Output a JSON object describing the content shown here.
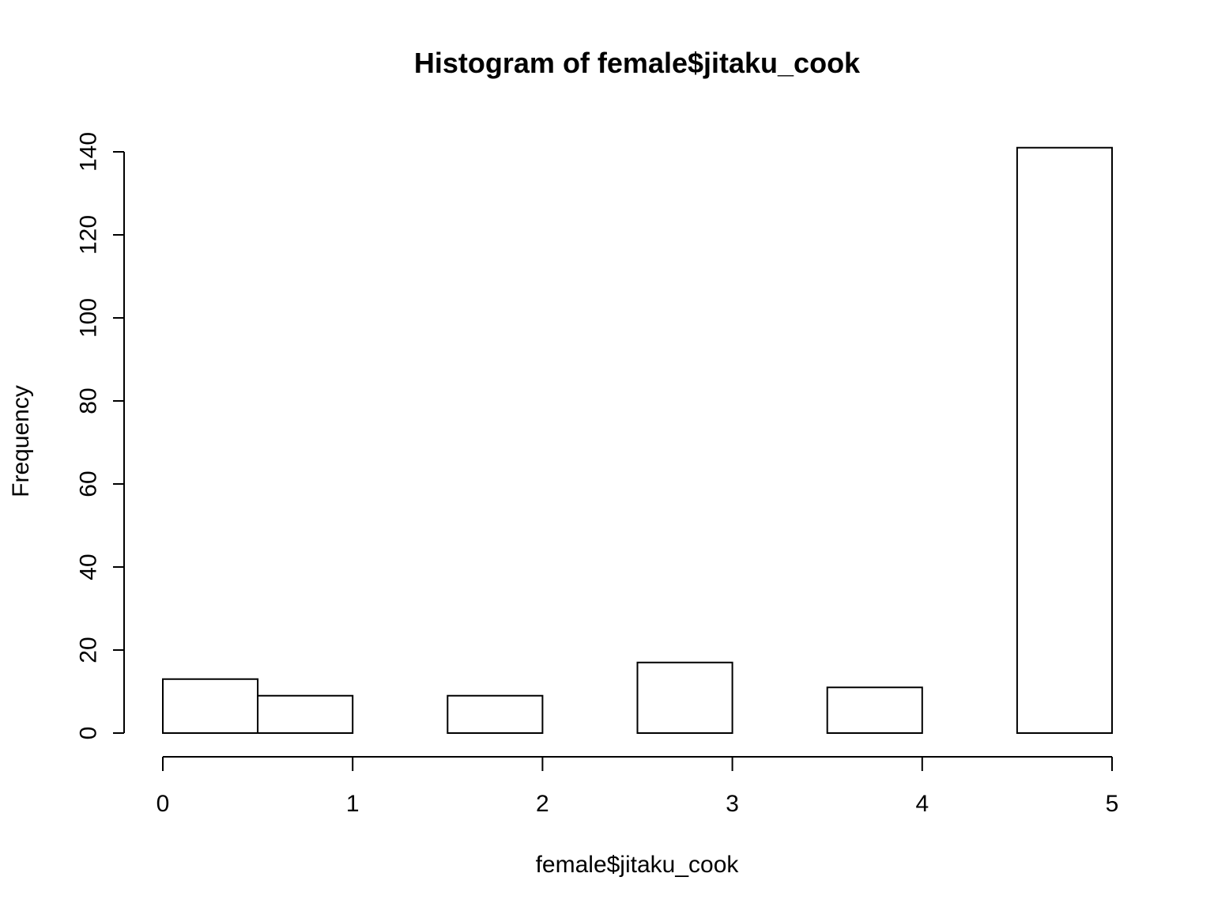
{
  "chart_data": {
    "type": "bar",
    "title": "Histogram of female$jitaku_cook",
    "xlabel": "female$jitaku_cook",
    "ylabel": "Frequency",
    "bin_edges": [
      0,
      0.5,
      1,
      1.5,
      2,
      2.5,
      3,
      3.5,
      4,
      4.5,
      5
    ],
    "values": [
      13,
      9,
      0,
      9,
      0,
      17,
      0,
      11,
      0,
      141
    ],
    "xlim": [
      0,
      5
    ],
    "ylim": [
      0,
      140
    ],
    "x_ticks": [
      "0",
      "1",
      "2",
      "3",
      "4",
      "5"
    ],
    "y_ticks": [
      "0",
      "20",
      "40",
      "60",
      "80",
      "100",
      "120",
      "140"
    ],
    "grid": false,
    "legend": "none"
  }
}
